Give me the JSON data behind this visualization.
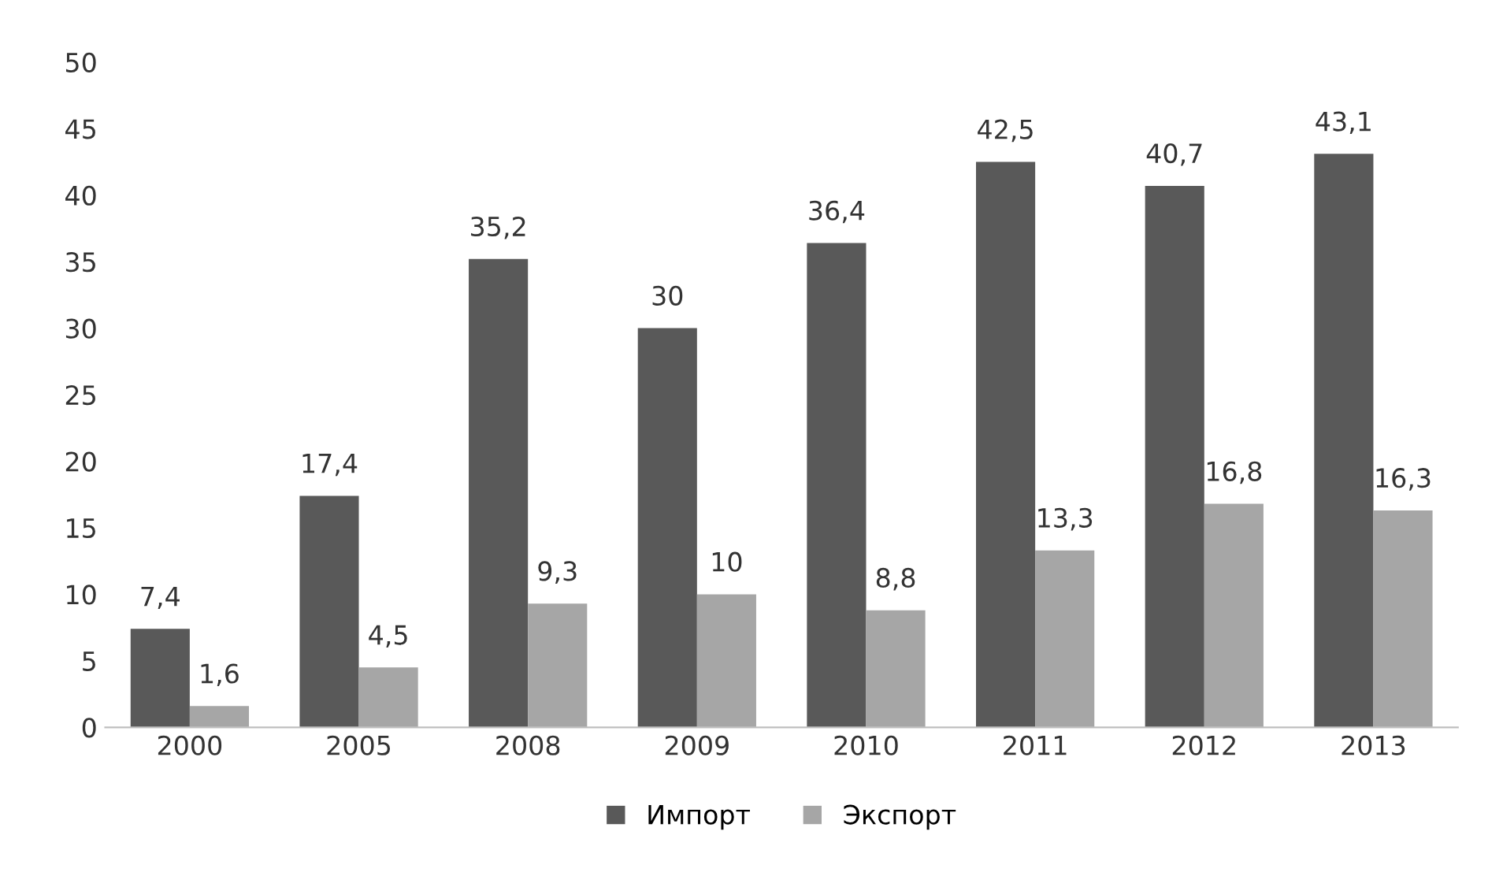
{
  "chart_data": {
    "type": "bar",
    "categories": [
      "2000",
      "2005",
      "2008",
      "2009",
      "2010",
      "2011",
      "2012",
      "2013"
    ],
    "series": [
      {
        "name": "Импорт",
        "color": "#595959",
        "values": [
          7.4,
          17.4,
          35.2,
          30,
          36.4,
          42.5,
          40.7,
          43.1
        ],
        "value_labels": [
          "7,4",
          "17,4",
          "35,2",
          "30",
          "36,4",
          "42,5",
          "40,7",
          "43,1"
        ]
      },
      {
        "name": "Экспорт",
        "color": "#a6a6a6",
        "values": [
          1.6,
          4.5,
          9.3,
          10,
          8.8,
          13.3,
          16.8,
          16.3
        ],
        "value_labels": [
          "1,6",
          "4,5",
          "9,3",
          "10",
          "8,8",
          "13,3",
          "16,8",
          "16,3"
        ]
      }
    ],
    "ylim": [
      0,
      50
    ],
    "yticks": [
      0,
      5,
      10,
      15,
      20,
      25,
      30,
      35,
      40,
      45,
      50
    ],
    "grid": false,
    "legend": "bottom"
  }
}
